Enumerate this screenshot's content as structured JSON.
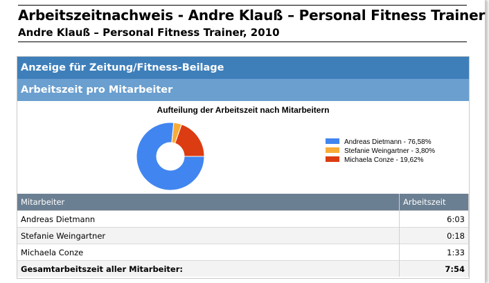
{
  "header": {
    "title": "Arbeitszeitnachweis - Andre Klauß – Personal Fitness Trainer",
    "subtitle": "Andre Klauß – Personal Fitness Trainer, 2010"
  },
  "section": {
    "project": "Anzeige für Zeitung/Fitness-Beilage",
    "heading": "Arbeitszeit pro Mitarbeiter"
  },
  "chart_data": {
    "type": "pie",
    "title": "Aufteilung der Arbeitszeit nach Mitarbeitern",
    "style": "donut",
    "legend_position": "right",
    "slices": [
      {
        "label": "Andreas Dietmann - 76,58%",
        "value": 76.58,
        "color": "#4185f0"
      },
      {
        "label": "Stefanie Weingartner - 3,80%",
        "value": 3.8,
        "color": "#f8ac38"
      },
      {
        "label": "Michaela Conze - 19,62%",
        "value": 19.62,
        "color": "#dc3c12"
      }
    ]
  },
  "table": {
    "headers": [
      "Mitarbeiter",
      "Arbeitszeit"
    ],
    "rows": [
      {
        "name": "Andreas Dietmann",
        "time": "6:03"
      },
      {
        "name": "Stefanie Weingartner",
        "time": "0:18"
      },
      {
        "name": "Michaela Conze",
        "time": "1:33"
      }
    ],
    "total_label": "Gesamtarbeitszeit aller Mitarbeiter:",
    "total_time": "7:54"
  }
}
